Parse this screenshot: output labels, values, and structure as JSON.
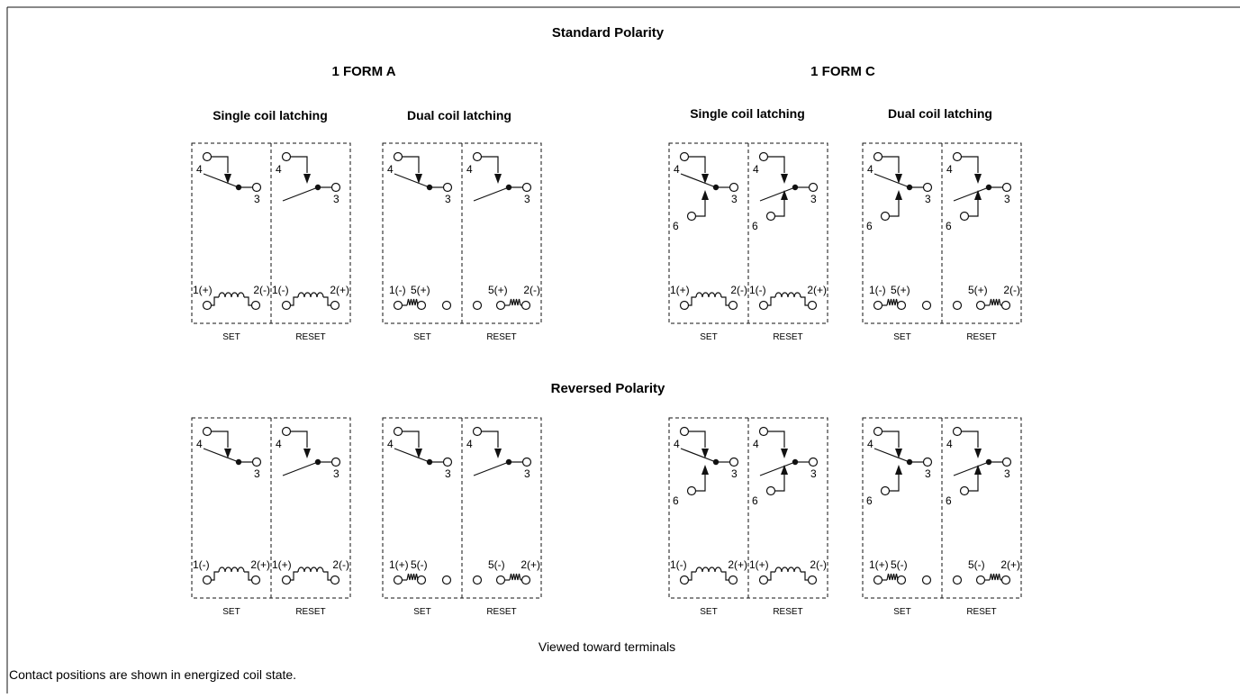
{
  "titles": {
    "standard": "Standard Polarity",
    "reversed": "Reversed Polarity",
    "form_a": "1 FORM A",
    "form_c": "1 FORM C",
    "single_coil": "Single coil latching",
    "dual_coil": "Dual coil latching"
  },
  "captions": {
    "set": "SET",
    "reset": "RESET"
  },
  "pins": {
    "p3": "3",
    "p4": "4",
    "p6": "6"
  },
  "footer": {
    "viewed": "Viewed toward terminals",
    "note": "Contact positions are shown in energized coil state."
  },
  "rows": [
    {
      "key": "standard",
      "single": {
        "set": {
          "left": "1(+)",
          "right": "2(-)"
        },
        "reset": {
          "left": "1(-)",
          "right": "2(+)"
        }
      },
      "dual": {
        "set": {
          "left": "1(-)",
          "right": "5(+)"
        },
        "reset": {
          "left": "5(+)",
          "right": "2(-)"
        }
      }
    },
    {
      "key": "reversed",
      "single": {
        "set": {
          "left": "1(-)",
          "right": "2(+)"
        },
        "reset": {
          "left": "1(+)",
          "right": "2(-)"
        }
      },
      "dual": {
        "set": {
          "left": "1(+)",
          "right": "5(-)"
        },
        "reset": {
          "left": "5(-)",
          "right": "2(+)"
        }
      }
    }
  ]
}
